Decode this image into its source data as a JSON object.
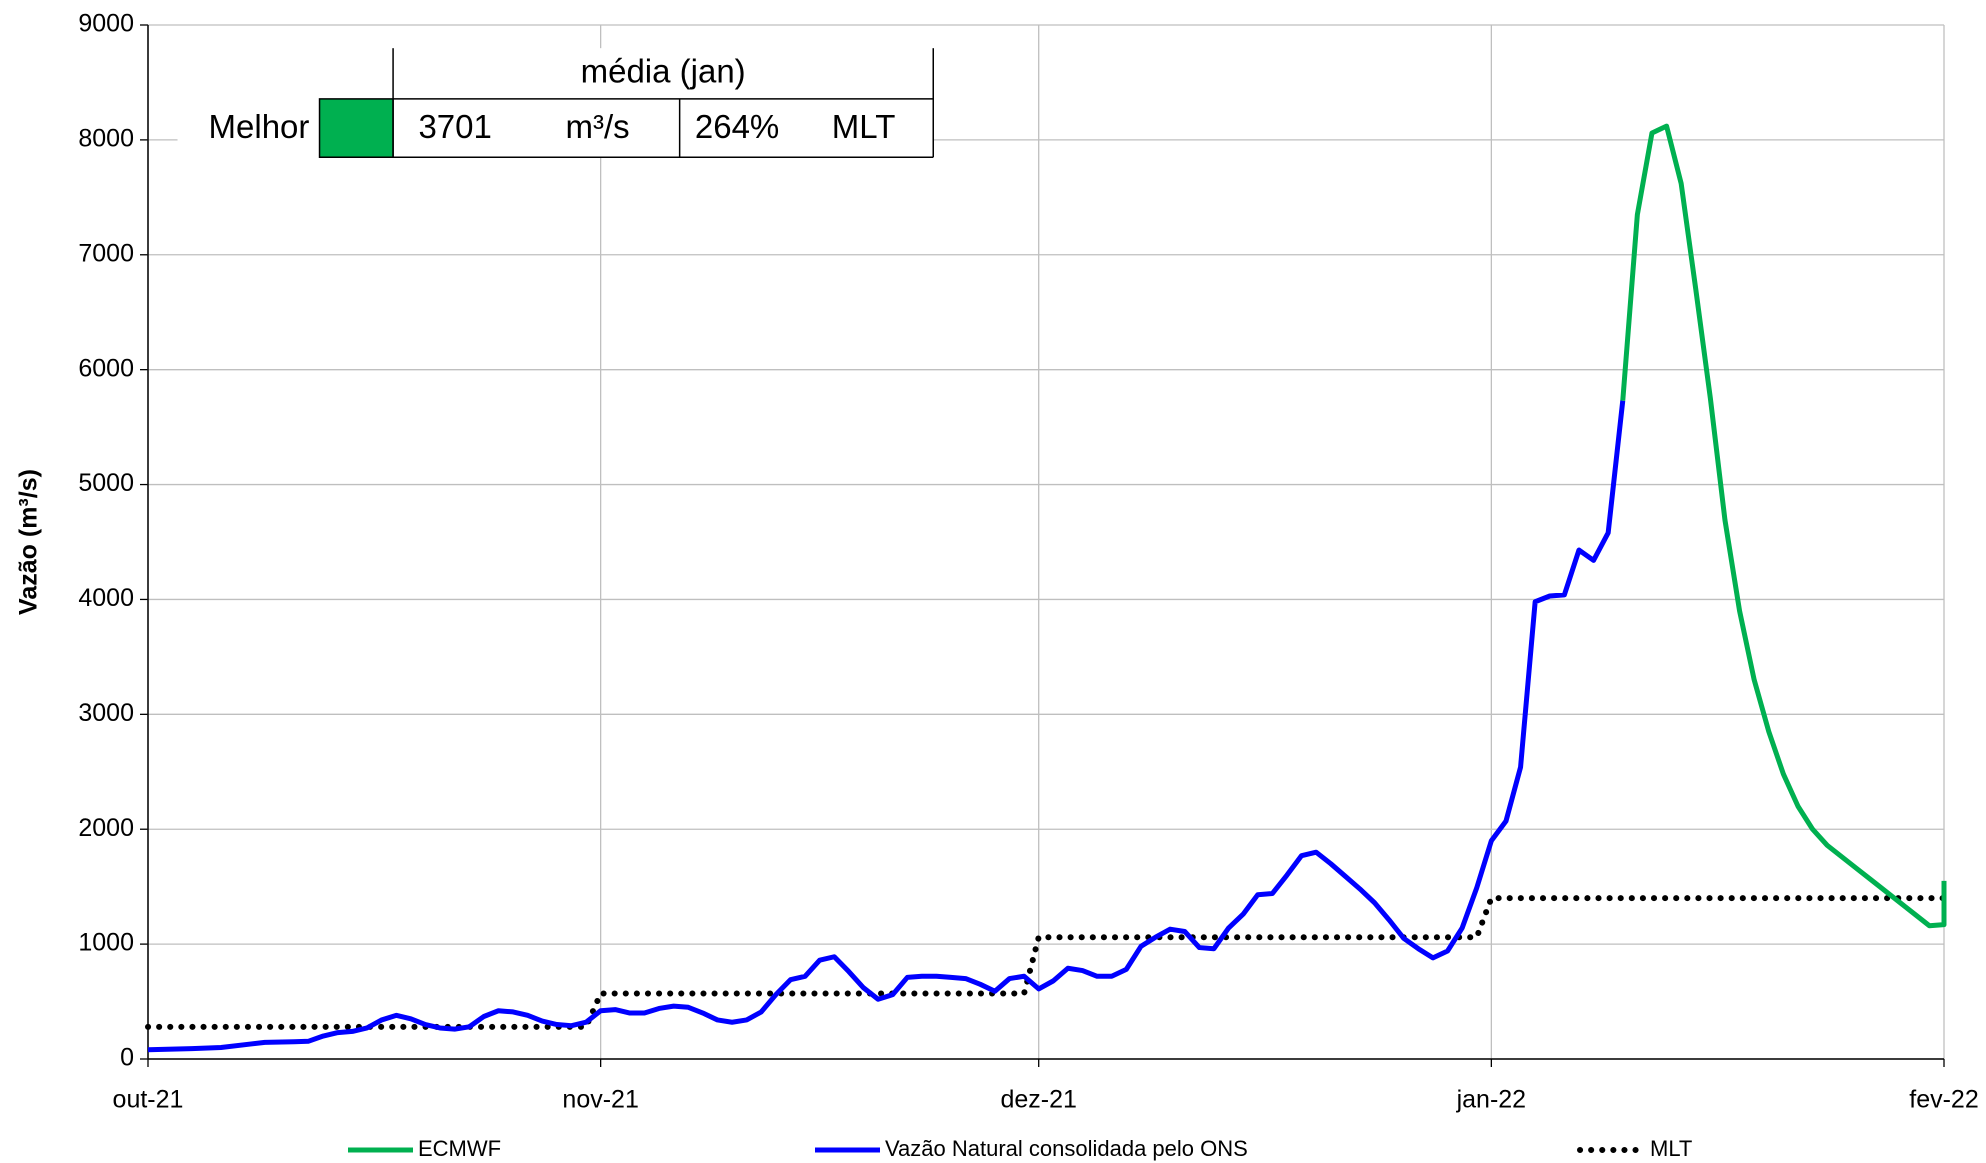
{
  "chart_data": {
    "type": "line",
    "ylabel": "Vazão (m³/s)",
    "xlim": [
      0,
      123
    ],
    "ylim": [
      0,
      9000
    ],
    "xticks": [
      {
        "value": 0,
        "label": "out-21"
      },
      {
        "value": 31,
        "label": "nov-21"
      },
      {
        "value": 61,
        "label": "dez-21"
      },
      {
        "value": 92,
        "label": "jan-22"
      },
      {
        "value": 123,
        "label": "fev-22"
      }
    ],
    "yticks": [
      0,
      1000,
      2000,
      3000,
      4000,
      5000,
      6000,
      7000,
      8000,
      9000
    ],
    "grid": true,
    "legend": "bottom",
    "series": [
      {
        "name": "ECMWF",
        "color": "#00b050",
        "style": "solid",
        "x": [
          101,
          102,
          103,
          104,
          105,
          106,
          107,
          108,
          109,
          110,
          111,
          112,
          113,
          114,
          115,
          116,
          117,
          118,
          119,
          120,
          121,
          122,
          123,
          123
        ],
        "values": [
          5730,
          7350,
          8060,
          8120,
          7620,
          6700,
          5750,
          4690,
          3900,
          3300,
          2850,
          2480,
          2200,
          2000,
          1860,
          1760,
          1660,
          1560,
          1460,
          1360,
          1260,
          1160,
          1170,
          1550
        ]
      },
      {
        "name": "Vazão Natural consolidada pelo ONS",
        "color": "#0000ff",
        "style": "solid",
        "x": [
          0,
          3,
          5,
          7,
          8,
          10,
          11,
          12,
          13,
          14,
          15,
          16,
          17,
          18,
          19,
          20,
          21,
          22,
          23,
          24,
          25,
          26,
          27,
          28,
          29,
          30,
          31,
          32,
          33,
          34,
          35,
          36,
          37,
          38,
          39,
          40,
          41,
          42,
          43,
          44,
          45,
          46,
          47,
          48,
          49,
          50,
          51,
          52,
          53,
          54,
          55,
          56,
          57,
          58,
          59,
          60,
          61,
          62,
          63,
          64,
          65,
          66,
          67,
          68,
          69,
          70,
          71,
          72,
          73,
          74,
          75,
          76,
          77,
          78,
          79,
          80,
          81,
          82,
          83,
          84,
          85,
          86,
          87,
          88,
          89,
          90,
          91,
          92,
          93,
          94,
          95,
          96,
          97,
          98,
          99,
          100,
          101
        ],
        "values": [
          80,
          90,
          100,
          130,
          145,
          150,
          155,
          200,
          230,
          240,
          270,
          340,
          380,
          350,
          300,
          270,
          260,
          280,
          370,
          420,
          410,
          380,
          330,
          300,
          290,
          320,
          420,
          430,
          400,
          400,
          440,
          460,
          450,
          400,
          340,
          320,
          340,
          410,
          560,
          690,
          720,
          860,
          890,
          760,
          620,
          520,
          560,
          710,
          720,
          720,
          710,
          700,
          650,
          590,
          700,
          720,
          610,
          680,
          790,
          770,
          720,
          720,
          780,
          980,
          1060,
          1130,
          1110,
          970,
          960,
          1140,
          1260,
          1430,
          1440,
          1600,
          1770,
          1800,
          1700,
          1590,
          1480,
          1360,
          1210,
          1050,
          960,
          880,
          940,
          1140,
          1490,
          1900,
          2070,
          2540,
          3980,
          4030,
          4040,
          4430,
          4340,
          4580,
          5730
        ]
      },
      {
        "name": "MLT",
        "color": "#000000",
        "style": "dotted",
        "x": [
          0,
          30,
          31,
          60,
          61,
          91,
          92,
          123
        ],
        "values": [
          280,
          280,
          570,
          570,
          1060,
          1060,
          1400,
          1400
        ]
      }
    ],
    "inset": {
      "title": "média (jan)",
      "row_label": "Melhor",
      "swatch_color": "#00b050",
      "cells": [
        "3701",
        "m³/s",
        "264%",
        "MLT"
      ]
    }
  }
}
